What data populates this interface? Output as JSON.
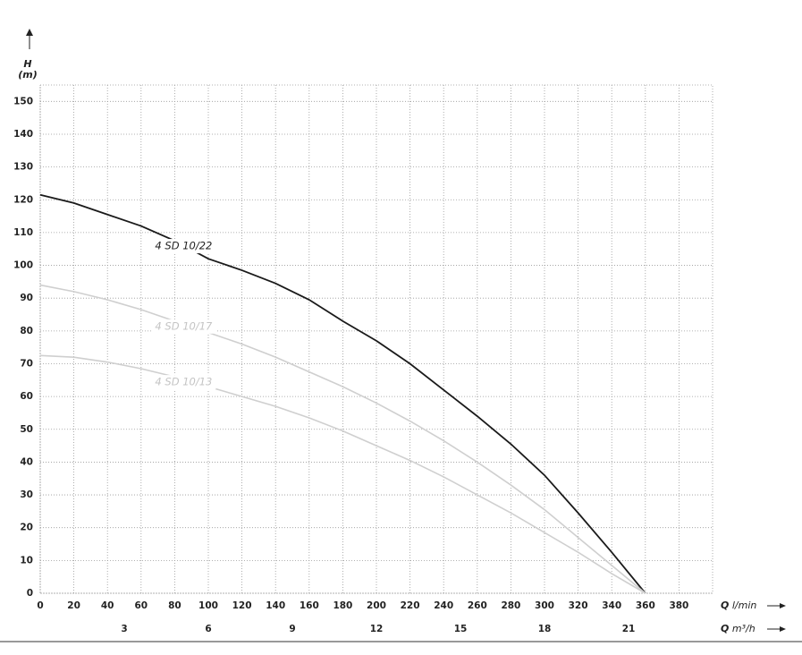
{
  "chart_data": {
    "type": "line",
    "y_label": "H",
    "y_unit": "(m)",
    "x_label": "Q",
    "x_unit": "l/min",
    "x2_label": "Q",
    "x2_unit": "m³/h",
    "x": [
      0,
      20,
      40,
      60,
      80,
      100,
      120,
      140,
      160,
      180,
      200,
      220,
      240,
      260,
      280,
      300,
      320,
      340,
      360
    ],
    "series": [
      {
        "name": "4 SD 10/22",
        "color": "#1a1a1a",
        "values": [
          121.5,
          119,
          115.5,
          112,
          107.5,
          102,
          98.5,
          94.5,
          89.5,
          83,
          77,
          70,
          62,
          54,
          45.5,
          36,
          24.5,
          12.5,
          0
        ]
      },
      {
        "name": "4 SD 10/17",
        "color": "#cfcfcf",
        "values": [
          94,
          92,
          89.5,
          86.5,
          83,
          79.5,
          76,
          72,
          67.5,
          63,
          58,
          52.5,
          46.5,
          40,
          33,
          25.5,
          17,
          8.5,
          0
        ]
      },
      {
        "name": "4 SD 10/13",
        "color": "#cfcfcf",
        "values": [
          72.5,
          72,
          70.5,
          68.5,
          66,
          63,
          60,
          57,
          53.5,
          49.5,
          45,
          40.5,
          35.5,
          30,
          24.5,
          18.5,
          12.5,
          6,
          0
        ]
      }
    ],
    "xlim": [
      0,
      400
    ],
    "xticks": [
      0,
      20,
      40,
      60,
      80,
      100,
      120,
      140,
      160,
      180,
      200,
      220,
      240,
      260,
      280,
      300,
      320,
      340,
      360,
      380
    ],
    "ylim": [
      0,
      155
    ],
    "yticks": [
      0,
      10,
      20,
      30,
      40,
      50,
      60,
      70,
      80,
      90,
      100,
      110,
      120,
      130,
      140,
      150
    ],
    "x2lim": [
      0,
      24
    ],
    "x2ticks": [
      3,
      6,
      9,
      12,
      15,
      18,
      21
    ],
    "grid": true
  }
}
